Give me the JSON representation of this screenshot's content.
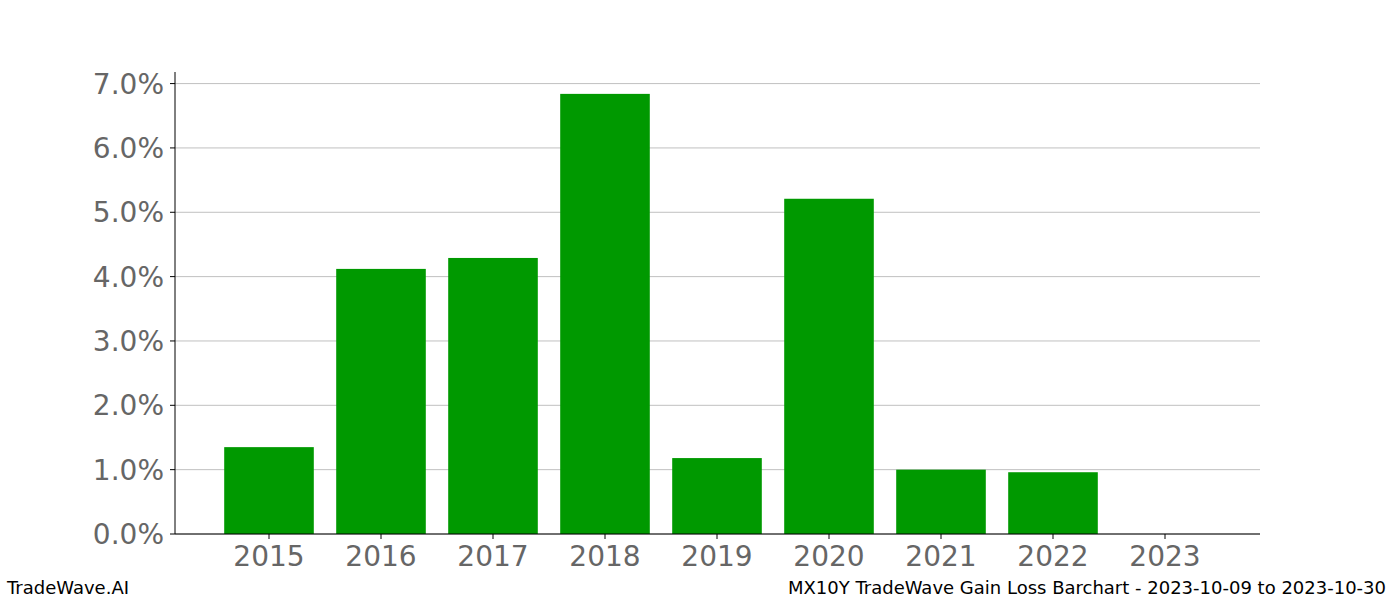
{
  "chart_data": {
    "type": "bar",
    "categories": [
      "2015",
      "2016",
      "2017",
      "2018",
      "2019",
      "2020",
      "2021",
      "2022",
      "2023"
    ],
    "values": [
      1.35,
      4.12,
      4.29,
      6.84,
      1.18,
      5.21,
      1.0,
      0.96,
      0
    ],
    "color": "#009900",
    "ylim": [
      0,
      7.18
    ],
    "yticks": [
      {
        "value": 0,
        "label": "0.0%"
      },
      {
        "value": 1,
        "label": "1.0%"
      },
      {
        "value": 2,
        "label": "2.0%"
      },
      {
        "value": 3,
        "label": "3.0%"
      },
      {
        "value": 4,
        "label": "4.0%"
      },
      {
        "value": 5,
        "label": "5.0%"
      },
      {
        "value": 6,
        "label": "6.0%"
      },
      {
        "value": 7,
        "label": "7.0%"
      }
    ],
    "grid": true,
    "annotations": [
      "TradeWave.AI",
      "MX10Y TradeWave Gain Loss Barchart - 2023-10-09 to 2023-10-30"
    ]
  }
}
